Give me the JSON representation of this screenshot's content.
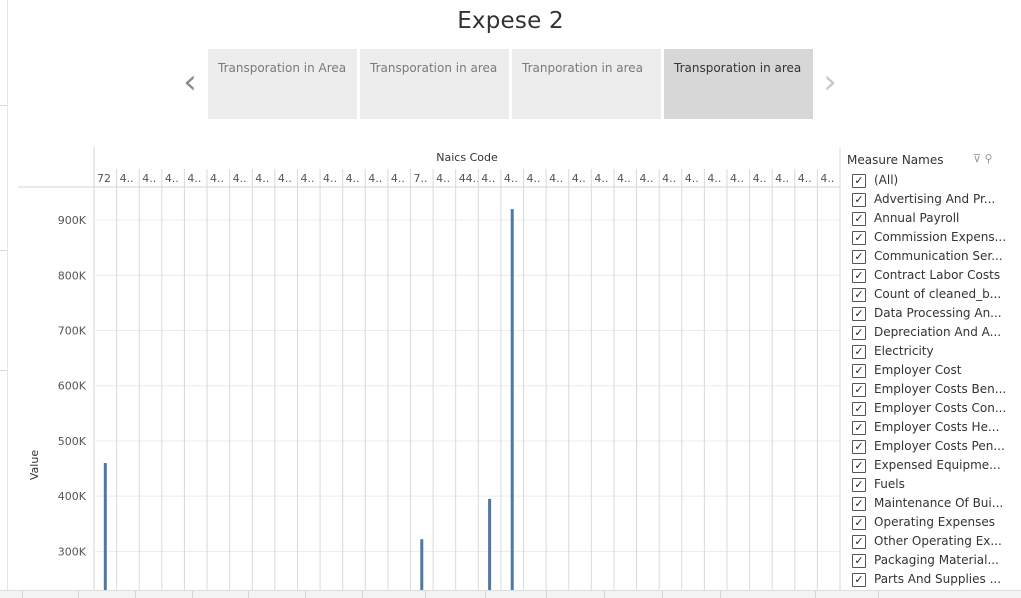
{
  "dashboard": {
    "title": "Expese 2"
  },
  "story": {
    "prev_arrow": "‹",
    "next_arrow": "›",
    "tabs": [
      {
        "label": "Transporation in Area",
        "active": false
      },
      {
        "label": "Transporation in area",
        "active": false
      },
      {
        "label": "Tranporation in area",
        "active": false
      },
      {
        "label": "Transporation in area",
        "active": true
      }
    ]
  },
  "chart_data": {
    "type": "bar",
    "title": "",
    "xlabel": "Naics Code",
    "ylabel": "Value",
    "ylim": [
      230000,
      960000
    ],
    "yticks": [
      300000,
      400000,
      500000,
      600000,
      700000,
      800000,
      900000
    ],
    "ytick_labels": [
      "300K",
      "400K",
      "500K",
      "600K",
      "700K",
      "800K",
      "900K"
    ],
    "grid": true,
    "bar_color": "#4e79a7",
    "categories": [
      "72",
      "4..",
      "4..",
      "4..",
      "4..",
      "4..",
      "4..",
      "4..",
      "4..",
      "4..",
      "4..",
      "4..",
      "4..",
      "4..",
      "7..",
      "4..",
      "44..",
      "4..",
      "4..",
      "4..",
      "4..",
      "4..",
      "4..",
      "4..",
      "4..",
      "4..",
      "4..",
      "4..",
      "4..",
      "4..",
      "4..",
      "4..",
      "4.."
    ],
    "visible_bars": [
      {
        "category_index": 0,
        "value": 460000
      },
      {
        "category_index": 14,
        "value": 322000
      },
      {
        "category_index": 17,
        "value": 395000
      },
      {
        "category_index": 18,
        "value": 920000
      }
    ]
  },
  "legend": {
    "title": "Measure Names",
    "tools": "⊽ ⚲",
    "items": [
      {
        "label": "(All)",
        "checked": true
      },
      {
        "label": "Advertising And Pr...",
        "checked": true
      },
      {
        "label": "Annual Payroll",
        "checked": true
      },
      {
        "label": "Commission Expens...",
        "checked": true
      },
      {
        "label": "Communication Ser...",
        "checked": true
      },
      {
        "label": "Contract Labor Costs",
        "checked": true
      },
      {
        "label": "Count of cleaned_b...",
        "checked": true
      },
      {
        "label": "Data Processing An...",
        "checked": true
      },
      {
        "label": "Depreciation And A...",
        "checked": true
      },
      {
        "label": "Electricity",
        "checked": true
      },
      {
        "label": "Employer Cost",
        "checked": true
      },
      {
        "label": "Employer Costs Ben...",
        "checked": true
      },
      {
        "label": "Employer Costs Con...",
        "checked": true
      },
      {
        "label": "Employer Costs He...",
        "checked": true
      },
      {
        "label": "Employer Costs Pen...",
        "checked": true
      },
      {
        "label": "Expensed Equipme...",
        "checked": true
      },
      {
        "label": "Fuels",
        "checked": true
      },
      {
        "label": "Maintenance Of Bui...",
        "checked": true
      },
      {
        "label": "Operating Expenses",
        "checked": true
      },
      {
        "label": "Other Operating Ex...",
        "checked": true
      },
      {
        "label": "Packaging Material...",
        "checked": true
      },
      {
        "label": "Parts And Supplies ...",
        "checked": true
      }
    ]
  }
}
